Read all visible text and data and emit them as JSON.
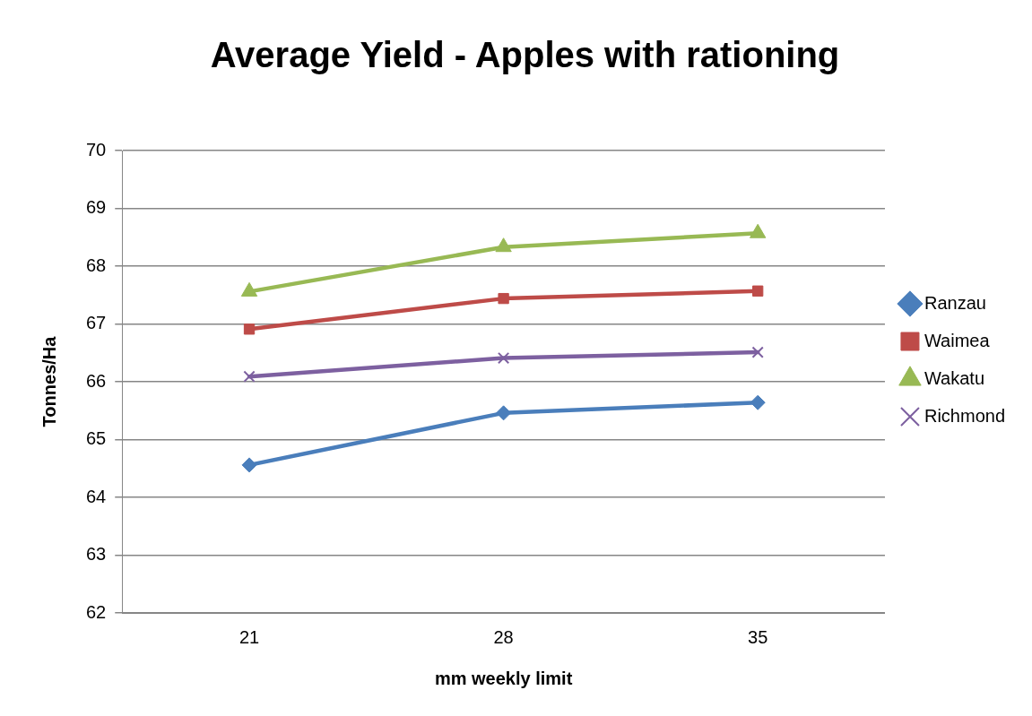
{
  "chart_data": {
    "type": "line",
    "title": "Average Yield - Apples with rationing",
    "xlabel": "mm weekly limit",
    "ylabel": "Tonnes/Ha",
    "categories": [
      "21",
      "28",
      "35"
    ],
    "series": [
      {
        "name": "Ranzau",
        "color": "#4a7ebb",
        "marker": "diamond",
        "values": [
          64.56,
          65.46,
          65.64
        ]
      },
      {
        "name": "Waimea",
        "color": "#be4b48",
        "marker": "square",
        "values": [
          66.91,
          67.44,
          67.57
        ]
      },
      {
        "name": "Wakatu",
        "color": "#98b954",
        "marker": "triangle",
        "values": [
          67.56,
          68.33,
          68.57
        ]
      },
      {
        "name": "Richmond",
        "color": "#7d60a0",
        "marker": "cross",
        "values": [
          66.09,
          66.41,
          66.51
        ]
      }
    ],
    "ylim": [
      62,
      70
    ],
    "yticks": [
      62,
      63,
      64,
      65,
      66,
      67,
      68,
      69,
      70
    ],
    "grid": "y",
    "legend": "right",
    "line_style": "solid"
  }
}
